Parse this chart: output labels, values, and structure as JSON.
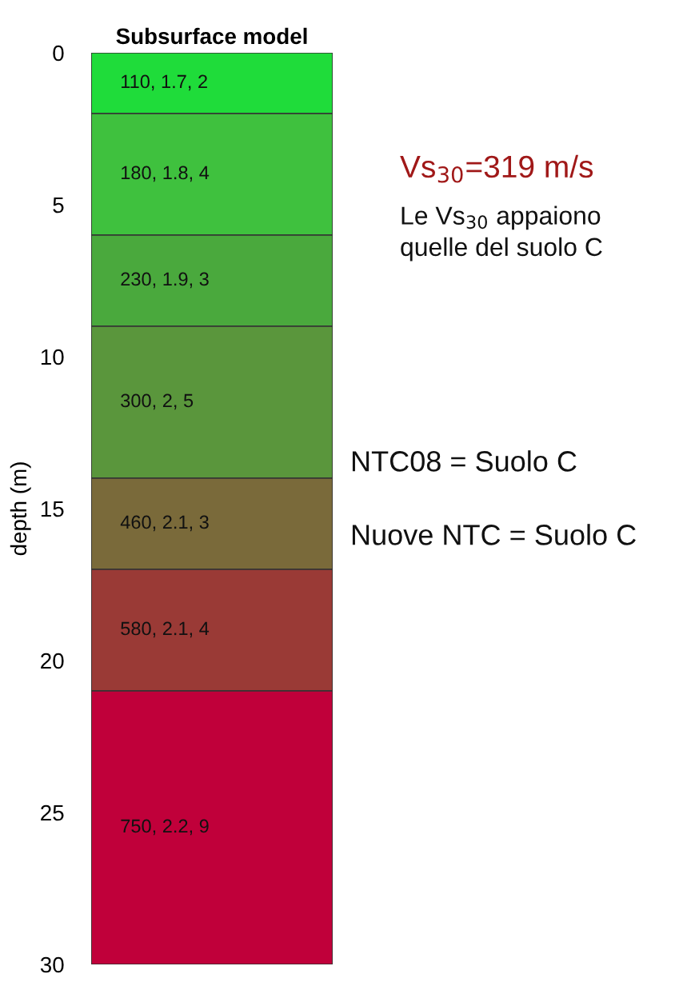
{
  "chart_data": {
    "type": "bar",
    "stacked": true,
    "title": "Subsurface model",
    "ylabel": "depth (m)",
    "categories": [
      null
    ],
    "series": [
      {
        "color": "#1fdc3a",
        "values": [
          2
        ],
        "value_labels": [
          "110, 1.7, 2"
        ]
      },
      {
        "color": "#3fc13e",
        "values": [
          4
        ],
        "value_labels": [
          "180, 1.8, 4"
        ]
      },
      {
        "color": "#4aa93d",
        "values": [
          3
        ],
        "value_labels": [
          "230, 1.9, 3"
        ]
      },
      {
        "color": "#5a963c",
        "values": [
          5
        ],
        "value_labels": [
          "300, 2, 5"
        ]
      },
      {
        "color": "#7a6a3a",
        "values": [
          3
        ],
        "value_labels": [
          "460, 2.1, 3"
        ]
      },
      {
        "color": "#9a3a36",
        "values": [
          4
        ],
        "value_labels": [
          "580, 2.1, 4"
        ]
      },
      {
        "color": "#c0003a",
        "values": [
          9
        ],
        "value_labels": [
          "750, 2.2, 9"
        ]
      }
    ],
    "ylim": [
      30,
      0
    ],
    "yticks": [
      0,
      5,
      10,
      15,
      20,
      25,
      30
    ],
    "tick_labels": "y",
    "grid": false,
    "annotations": [
      "Vs$_{30}$=319 m/s",
      "Le Vs$_{30}$ appaiono\nquelle del suolo C",
      "NTC08 = Suolo C",
      "Nuove NTC = Suolo C"
    ]
  }
}
